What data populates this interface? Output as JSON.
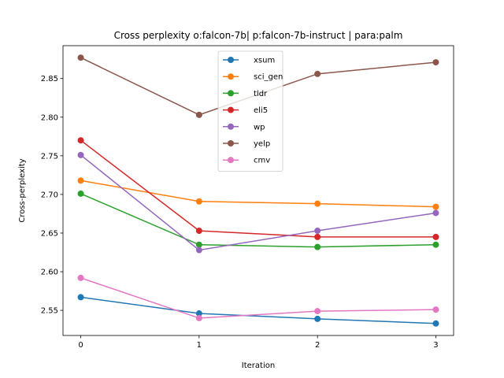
{
  "chart_data": {
    "type": "line",
    "title": "Cross perplexity o:falcon-7b| p:falcon-7b-instruct | para:palm",
    "xlabel": "Iteration",
    "ylabel": "Cross-perplexity",
    "x": [
      0,
      1,
      2,
      3
    ],
    "xticks": [
      0,
      1,
      2,
      3
    ],
    "yticks": [
      2.55,
      2.6,
      2.65,
      2.7,
      2.75,
      2.8,
      2.85
    ],
    "xlim": [
      -0.15,
      3.15
    ],
    "ylim": [
      2.5175,
      2.8925
    ],
    "grid": false,
    "legend_position": "top-center",
    "series": [
      {
        "name": "xsum",
        "color": "#1f77b4",
        "values": [
          2.567,
          2.546,
          2.539,
          2.533
        ]
      },
      {
        "name": "sci_gen",
        "color": "#ff7f0e",
        "values": [
          2.718,
          2.691,
          2.688,
          2.684
        ]
      },
      {
        "name": "tldr",
        "color": "#2ca02c",
        "values": [
          2.701,
          2.635,
          2.632,
          2.635
        ]
      },
      {
        "name": "eli5",
        "color": "#d62728",
        "values": [
          2.77,
          2.653,
          2.645,
          2.645
        ]
      },
      {
        "name": "wp",
        "color": "#9467bd",
        "values": [
          2.751,
          2.628,
          2.653,
          2.676
        ]
      },
      {
        "name": "yelp",
        "color": "#8c564b",
        "values": [
          2.877,
          2.803,
          2.856,
          2.871
        ]
      },
      {
        "name": "cmv",
        "color": "#e377c2",
        "values": [
          2.592,
          2.54,
          2.549,
          2.551
        ]
      }
    ]
  }
}
